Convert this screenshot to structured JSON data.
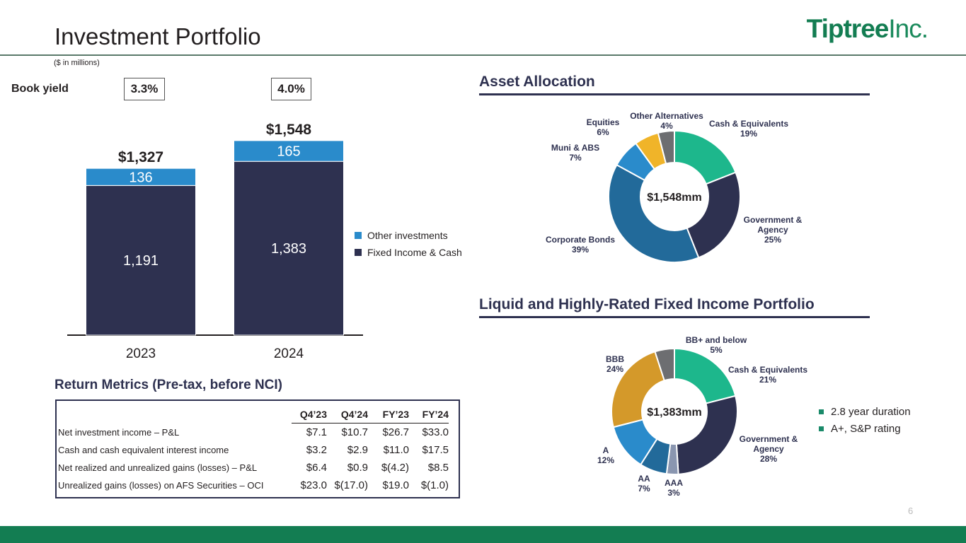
{
  "title": "Investment Portfolio",
  "logo": {
    "part1": "Tiptree",
    "part2": "Inc."
  },
  "units_note": "($ in millions)",
  "page_number": "6",
  "book_yield": {
    "label": "Book yield",
    "values": [
      "3.3%",
      "4.0%"
    ]
  },
  "legend": {
    "other": "Other investments",
    "fixed": "Fixed Income & Cash"
  },
  "colors": {
    "navy": "#2e3150",
    "blue": "#2a8bcb",
    "green": "#137d52"
  },
  "chart_data": [
    {
      "type": "bar",
      "stacked": true,
      "categories": [
        "2023",
        "2024"
      ],
      "series": [
        {
          "name": "Fixed Income & Cash",
          "values": [
            1191,
            1383
          ],
          "labels": [
            "1,191",
            "1,383"
          ],
          "color": "#2e3150"
        },
        {
          "name": "Other investments",
          "values": [
            136,
            165
          ],
          "labels": [
            "136",
            "165"
          ],
          "color": "#2a8bcb"
        }
      ],
      "totals": [
        "$1,327",
        "$1,548"
      ],
      "ylim": [
        0,
        1750
      ]
    },
    {
      "type": "pie",
      "title": "Asset Allocation",
      "center_label": "$1,548mm",
      "slices": [
        {
          "name": "Cash & Equivalents",
          "pct_label": "19%",
          "value": 19,
          "color": "#1db78c"
        },
        {
          "name": "Government & Agency",
          "pct_label": "25%",
          "value": 25,
          "color": "#2e3150"
        },
        {
          "name": "Corporate Bonds",
          "pct_label": "39%",
          "value": 39,
          "color": "#226a9a"
        },
        {
          "name": "Muni & ABS",
          "pct_label": "7%",
          "value": 7,
          "color": "#2a8bcb"
        },
        {
          "name": "Equities",
          "pct_label": "6%",
          "value": 6,
          "color": "#f0b429"
        },
        {
          "name": "Other Alternatives",
          "pct_label": "4%",
          "value": 4,
          "color": "#6d6e71"
        }
      ]
    },
    {
      "type": "pie",
      "title": "Liquid and Highly-Rated Fixed Income Portfolio",
      "center_label": "$1,383mm",
      "slices": [
        {
          "name": "Cash & Equivalents",
          "pct_label": "21%",
          "value": 21,
          "color": "#1db78c"
        },
        {
          "name": "Government & Agency",
          "pct_label": "28%",
          "value": 28,
          "color": "#2e3150"
        },
        {
          "name": "AAA",
          "pct_label": "3%",
          "value": 3,
          "color": "#8a96b0"
        },
        {
          "name": "AA",
          "pct_label": "7%",
          "value": 7,
          "color": "#226a9a"
        },
        {
          "name": "A",
          "pct_label": "12%",
          "value": 12,
          "color": "#2a8bcb"
        },
        {
          "name": "BBB",
          "pct_label": "24%",
          "value": 24,
          "color": "#d4992a"
        },
        {
          "name": "BB+ and below",
          "pct_label": "5%",
          "value": 5,
          "color": "#6d6e71"
        }
      ]
    }
  ],
  "fixed_income_notes": [
    "2.8 year duration",
    "A+, S&P rating"
  ],
  "return_metrics": {
    "title": "Return Metrics (Pre-tax, before NCI)",
    "columns": [
      "Q4’23",
      "Q4’24",
      "FY’23",
      "FY’24"
    ],
    "rows": [
      {
        "label": "Net investment income – P&L",
        "values": [
          "$7.1",
          "$10.7",
          "$26.7",
          "$33.0"
        ]
      },
      {
        "label": "Cash and cash equivalent interest income",
        "values": [
          "$3.2",
          "$2.9",
          "$11.0",
          "$17.5"
        ]
      },
      {
        "label": "Net realized and unrealized gains (losses) – P&L",
        "values": [
          "$6.4",
          "$0.9",
          "$(4.2)",
          "$8.5"
        ]
      },
      {
        "label": "Unrealized gains (losses) on AFS Securities – OCI",
        "values": [
          "$23.0",
          "$(17.0)",
          "$19.0",
          "$(1.0)"
        ]
      }
    ]
  }
}
